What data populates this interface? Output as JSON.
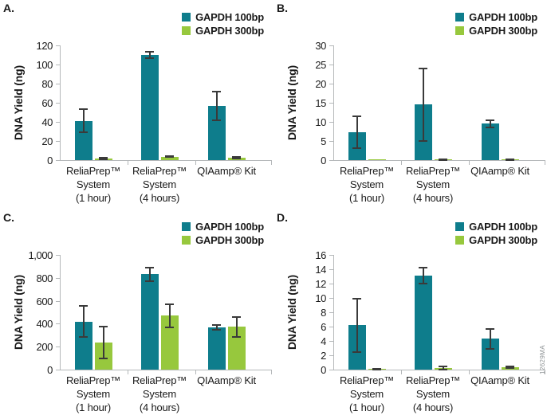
{
  "watermark": "12629MA",
  "colors": {
    "teal": "#0e7d8c",
    "green": "#97c83d",
    "axis": "#b5b8ba",
    "error_bar": "#3a3a3a",
    "watermark_gray": "#8f9496"
  },
  "categories_display": [
    [
      "ReliaPrep™",
      "System",
      "(1 hour)"
    ],
    [
      "ReliaPrep™",
      "System",
      "(4 hours)"
    ],
    [
      "QIAamp® Kit"
    ]
  ],
  "chart_data": [
    {
      "panel_label": "A.",
      "type": "bar",
      "ylabel": "DNA Yield (ng)",
      "ylim": [
        0,
        120
      ],
      "yticks": [
        0,
        20,
        40,
        60,
        80,
        100,
        120
      ],
      "ytick_labels": [
        "0",
        "20",
        "40",
        "60",
        "80",
        "100",
        "120"
      ],
      "categories": [
        "ReliaPrep™ System (1 hour)",
        "ReliaPrep™ System (4 hours)",
        "QIAamp® Kit"
      ],
      "legend_position": "top-right",
      "grid": false,
      "series": [
        {
          "name": "GAPDH 100bp",
          "color": "#0e7d8c",
          "values": [
            41,
            110,
            57
          ],
          "errors": [
            12,
            3,
            15
          ]
        },
        {
          "name": "GAPDH 300bp",
          "color": "#97c83d",
          "values": [
            1.5,
            3.5,
            2.5
          ],
          "errors": [
            1,
            0.5,
            1
          ]
        }
      ]
    },
    {
      "panel_label": "B.",
      "type": "bar",
      "ylabel": "DNA Yield (ng)",
      "ylim": [
        0,
        30
      ],
      "yticks": [
        0,
        5,
        10,
        15,
        20,
        25,
        30
      ],
      "ytick_labels": [
        "0",
        "5",
        "10",
        "15",
        "20",
        "25",
        "30"
      ],
      "categories": [
        "ReliaPrep™ System (1 hour)",
        "ReliaPrep™ System (4 hours)",
        "QIAamp® Kit"
      ],
      "legend_position": "top-right",
      "grid": false,
      "series": [
        {
          "name": "GAPDH 100bp",
          "color": "#0e7d8c",
          "values": [
            7.3,
            14.5,
            9.5
          ],
          "errors": [
            4.2,
            9.5,
            1
          ]
        },
        {
          "name": "GAPDH 300bp",
          "color": "#97c83d",
          "values": [
            0.1,
            0.2,
            0.2
          ],
          "errors": [
            0,
            0.1,
            0.1
          ]
        }
      ]
    },
    {
      "panel_label": "C.",
      "type": "bar",
      "ylabel": "DNA Yield (ng)",
      "ylim": [
        0,
        1000
      ],
      "yticks": [
        0,
        200,
        400,
        600,
        800,
        1000
      ],
      "ytick_labels": [
        "0",
        "200",
        "400",
        "600",
        "800",
        "1,000"
      ],
      "categories": [
        "ReliaPrep™ System (1 hour)",
        "ReliaPrep™ System (4 hours)",
        "QIAamp® Kit"
      ],
      "legend_position": "top-right",
      "grid": false,
      "series": [
        {
          "name": "GAPDH 100bp",
          "color": "#0e7d8c",
          "values": [
            420,
            830,
            370
          ],
          "errors": [
            135,
            60,
            22
          ]
        },
        {
          "name": "GAPDH 300bp",
          "color": "#97c83d",
          "values": [
            235,
            470,
            372
          ],
          "errors": [
            140,
            100,
            85
          ]
        }
      ]
    },
    {
      "panel_label": "D.",
      "type": "bar",
      "ylabel": "DNA Yield (ng)",
      "ylim": [
        0,
        16
      ],
      "yticks": [
        0,
        2,
        4,
        6,
        8,
        10,
        12,
        14,
        16
      ],
      "ytick_labels": [
        "0",
        "2",
        "4",
        "6",
        "8",
        "10",
        "12",
        "14",
        "16"
      ],
      "categories": [
        "ReliaPrep™ System (1 hour)",
        "ReliaPrep™ System (4 hours)",
        "QIAamp® Kit"
      ],
      "legend_position": "top-right",
      "grid": false,
      "series": [
        {
          "name": "GAPDH 100bp",
          "color": "#0e7d8c",
          "values": [
            6.2,
            13.1,
            4.3
          ],
          "errors": [
            3.7,
            1.1,
            1.4
          ]
        },
        {
          "name": "GAPDH 300bp",
          "color": "#97c83d",
          "values": [
            0.1,
            0.25,
            0.3
          ],
          "errors": [
            0.05,
            0.2,
            0.1
          ]
        }
      ]
    }
  ]
}
